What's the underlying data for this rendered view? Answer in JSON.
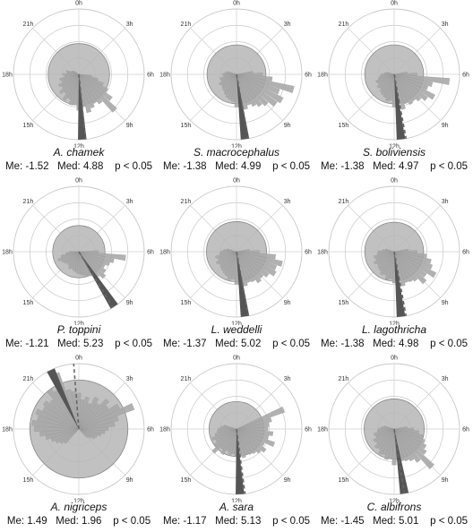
{
  "colors": {
    "ring": "#c8c8c8",
    "axis": "#cfcfcf",
    "disc_fill": "#b6b6b6",
    "disc_stroke": "#8a8a8a",
    "wedge_fill": "#a9a9a9",
    "wedge_stroke": "#9a9a9a",
    "mean_wedge": "#555555",
    "median_line": "#666666",
    "label": "#333333"
  },
  "hour_labels": [
    "0h",
    "3h",
    "6h",
    "9h",
    "12h",
    "15h",
    "18h",
    "21h"
  ],
  "chart_data": [
    {
      "type": "circular-histogram",
      "title": "A. chamek",
      "stats": {
        "me_label": "Me:",
        "me": "-1.52",
        "med_label": "Med:",
        "med": "4.88",
        "p": "p < 0.05"
      },
      "disc_radius": 0.47,
      "mean_hour": 11.8,
      "median_hour": 11.6,
      "bins_hours": [
        6.5,
        7,
        7.5,
        8,
        8.5,
        9,
        9.5,
        10,
        10.5,
        11,
        11.5,
        12,
        12.5,
        13,
        13.5,
        14,
        14.5,
        15,
        15.5,
        16,
        16.5,
        17,
        17.5,
        18,
        18.5,
        19,
        19.5,
        20
      ],
      "bins_values": [
        0.2,
        0.3,
        0.4,
        0.5,
        0.62,
        0.78,
        0.55,
        0.5,
        0.55,
        0.6,
        0.5,
        0.55,
        0.45,
        0.48,
        0.4,
        0.45,
        0.35,
        0.4,
        0.32,
        0.35,
        0.28,
        0.3,
        0.22,
        0.25,
        0.18,
        0.2,
        0.12,
        0.1
      ]
    },
    {
      "type": "circular-histogram",
      "title": "S. macrocephalus",
      "stats": {
        "me_label": "Me:",
        "me": "-1.38",
        "med_label": "Med:",
        "med": "4.99",
        "p": "p < 0.05"
      },
      "disc_radius": 0.45,
      "mean_hour": 11.5,
      "median_hour": 11.3,
      "bins_hours": [
        5.5,
        6,
        6.5,
        7,
        7.5,
        8,
        8.5,
        9,
        9.5,
        10,
        10.5,
        11,
        11.5,
        12,
        12.5,
        13,
        13.5,
        14,
        14.5,
        15,
        15.5,
        16,
        16.5,
        17,
        17.5,
        18,
        18.5,
        19
      ],
      "bins_values": [
        0.25,
        0.4,
        0.55,
        0.9,
        0.7,
        0.8,
        0.75,
        0.65,
        0.6,
        0.55,
        0.5,
        0.55,
        0.45,
        0.5,
        0.42,
        0.4,
        0.38,
        0.35,
        0.32,
        0.3,
        0.28,
        0.3,
        0.25,
        0.26,
        0.2,
        0.22,
        0.18,
        0.15
      ]
    },
    {
      "type": "circular-histogram",
      "title": "S. boliviensis",
      "stats": {
        "me_label": "Me:",
        "me": "-1.38",
        "med_label": "Med:",
        "med": "4.97",
        "p": "p < 0.05"
      },
      "disc_radius": 0.45,
      "mean_hour": 11.6,
      "median_hour": 11.3,
      "bins_hours": [
        5.5,
        6,
        6.5,
        7,
        7.5,
        8,
        8.5,
        9,
        9.5,
        10,
        10.5,
        11,
        11.5,
        12,
        12.5,
        13,
        13.5,
        14,
        14.5,
        15,
        15.5,
        16,
        16.5,
        17,
        17.5,
        18,
        18.5,
        19
      ],
      "bins_values": [
        0.2,
        0.35,
        0.85,
        0.6,
        0.55,
        0.7,
        0.62,
        0.55,
        0.5,
        0.52,
        0.48,
        0.55,
        0.45,
        0.5,
        0.4,
        0.42,
        0.38,
        0.36,
        0.34,
        0.3,
        0.32,
        0.28,
        0.3,
        0.25,
        0.22,
        0.2,
        0.15,
        0.12
      ]
    },
    {
      "type": "circular-histogram",
      "title": "P. toppini",
      "stats": {
        "me_label": "Me:",
        "me": "-1.21",
        "med_label": "Med:",
        "med": "5.23",
        "p": "p < 0.05"
      },
      "disc_radius": 0.4,
      "mean_hour": 9.8,
      "median_hour": 9.9,
      "bins_hours": [
        6,
        6.5,
        7,
        7.5,
        8,
        8.5,
        9,
        9.5,
        10,
        10.5,
        11,
        11.5,
        12,
        12.5,
        13,
        13.5,
        14,
        14.5,
        15,
        15.5,
        16,
        16.5,
        17,
        17.5,
        18
      ],
      "bins_values": [
        0.3,
        0.72,
        0.55,
        0.5,
        0.45,
        0.5,
        0.55,
        0.48,
        0.42,
        0.4,
        0.38,
        0.36,
        0.34,
        0.32,
        0.3,
        0.28,
        0.3,
        0.26,
        0.25,
        0.28,
        0.3,
        0.34,
        0.28,
        0.2,
        0.14
      ]
    },
    {
      "type": "circular-histogram",
      "title": "L. weddelli",
      "stats": {
        "me_label": "Me:",
        "me": "-1.37",
        "med_label": "Med:",
        "med": "5.02",
        "p": "p < 0.05"
      },
      "disc_radius": 0.46,
      "mean_hour": 11.5,
      "median_hour": 11.3,
      "bins_hours": [
        5.5,
        6,
        6.5,
        7,
        7.5,
        8,
        8.5,
        9,
        9.5,
        10,
        10.5,
        11,
        11.5,
        12,
        12.5,
        13,
        13.5,
        14,
        14.5,
        15,
        15.5,
        16,
        16.5,
        17,
        17.5,
        18,
        18.5,
        19
      ],
      "bins_values": [
        0.2,
        0.35,
        0.6,
        0.72,
        0.65,
        0.68,
        0.6,
        0.55,
        0.58,
        0.52,
        0.5,
        0.54,
        0.46,
        0.5,
        0.42,
        0.44,
        0.4,
        0.38,
        0.36,
        0.34,
        0.32,
        0.35,
        0.3,
        0.33,
        0.26,
        0.24,
        0.2,
        0.15
      ]
    },
    {
      "type": "circular-histogram",
      "title": "L. lagothricha",
      "stats": {
        "me_label": "Me:",
        "me": "-1.38",
        "med_label": "Med:",
        "med": "4.98",
        "p": "p < 0.05"
      },
      "disc_radius": 0.45,
      "mean_hour": 11.6,
      "median_hour": 11.3,
      "bins_hours": [
        5.5,
        6,
        6.5,
        7,
        7.5,
        8,
        8.5,
        9,
        9.5,
        10,
        10.5,
        11,
        11.5,
        12,
        12.5,
        13,
        13.5,
        14,
        14.5,
        15,
        15.5,
        16,
        16.5,
        17,
        17.5,
        18,
        18.5,
        19
      ],
      "bins_values": [
        0.22,
        0.35,
        0.5,
        0.58,
        0.62,
        0.72,
        0.6,
        0.66,
        0.55,
        0.52,
        0.5,
        0.54,
        0.46,
        0.48,
        0.42,
        0.44,
        0.38,
        0.4,
        0.36,
        0.34,
        0.32,
        0.35,
        0.3,
        0.32,
        0.26,
        0.24,
        0.18,
        0.14
      ]
    },
    {
      "type": "circular-histogram",
      "title": "A. nigriceps",
      "stats": {
        "me_label": "Me:",
        "me": "1.49",
        "med_label": "Med:",
        "med": "1.96",
        "p": "p < 0.05"
      },
      "disc_radius": 0.75,
      "mean_hour": 22.3,
      "median_hour": 23.7,
      "bins_hours": [
        0,
        0.5,
        1,
        1.5,
        2,
        2.5,
        3,
        3.5,
        4,
        4.5,
        5,
        5.5,
        6,
        6.5,
        7,
        7.5,
        8,
        8.5,
        9,
        15,
        15.5,
        16,
        16.5,
        17,
        17.5,
        18,
        18.5,
        19,
        19.5,
        20,
        20.5,
        21,
        21.5,
        22,
        22.5,
        23,
        23.5
      ],
      "bins_values": [
        0.55,
        0.45,
        0.5,
        0.42,
        0.55,
        0.48,
        0.62,
        0.55,
        0.7,
        0.9,
        0.62,
        0.55,
        0.45,
        0.4,
        0.35,
        0.3,
        0.28,
        0.22,
        0.18,
        0.3,
        0.35,
        0.4,
        0.45,
        0.52,
        0.6,
        0.68,
        0.72,
        0.65,
        0.7,
        0.62,
        0.66,
        0.6,
        0.75,
        0.68,
        0.92,
        0.62,
        0.58
      ]
    },
    {
      "type": "circular-histogram",
      "title": "A. sara",
      "stats": {
        "me_label": "Me:",
        "me": "-1.17",
        "med_label": "Med:",
        "med": "5.13",
        "p": "p < 0.05"
      },
      "disc_radius": 0.42,
      "mean_hour": 11.8,
      "median_hour": 11.5,
      "bins_hours": [
        4.5,
        5,
        5.5,
        6,
        6.5,
        7,
        7.5,
        8,
        8.5,
        9,
        9.5,
        10,
        10.5,
        11,
        11.5,
        12,
        12.5,
        13,
        13.5,
        14,
        14.5,
        15,
        15.5,
        16,
        16.5,
        17,
        17.5,
        18,
        18.5,
        19
      ],
      "bins_values": [
        0.78,
        0.55,
        0.5,
        0.48,
        0.56,
        0.5,
        0.62,
        0.48,
        0.55,
        0.5,
        0.46,
        0.44,
        0.42,
        0.45,
        0.4,
        0.42,
        0.38,
        0.4,
        0.36,
        0.44,
        0.38,
        0.5,
        0.42,
        0.36,
        0.4,
        0.34,
        0.3,
        0.28,
        0.24,
        0.2
      ]
    },
    {
      "type": "circular-histogram",
      "title": "C. albifrons",
      "stats": {
        "me_label": "Me:",
        "me": "-1.45",
        "med_label": "Med:",
        "med": "5.01",
        "p": "p < 0.05"
      },
      "disc_radius": 0.46,
      "mean_hour": 11.4,
      "median_hour": 11.4,
      "bins_hours": [
        5.5,
        6,
        6.5,
        7,
        7.5,
        8,
        8.5,
        9,
        9.5,
        10,
        10.5,
        11,
        11.5,
        12,
        12.5,
        13,
        13.5,
        14,
        14.5,
        15,
        15.5,
        16,
        16.5,
        17,
        17.5,
        18,
        18.5,
        19
      ],
      "bins_values": [
        0.2,
        0.3,
        0.38,
        0.45,
        0.5,
        0.55,
        0.6,
        0.82,
        0.62,
        0.55,
        0.52,
        0.5,
        0.48,
        0.55,
        0.46,
        0.48,
        0.42,
        0.44,
        0.38,
        0.4,
        0.34,
        0.36,
        0.3,
        0.32,
        0.26,
        0.24,
        0.2,
        0.16
      ]
    }
  ]
}
